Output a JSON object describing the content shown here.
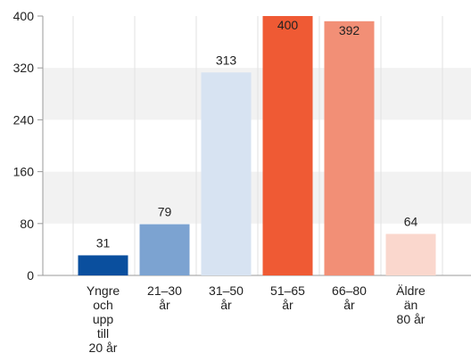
{
  "chart_data": {
    "type": "bar",
    "title": "",
    "xlabel": "",
    "ylabel": "",
    "ylim": [
      0,
      400
    ],
    "yticks": [
      "0",
      "80",
      "160",
      "240",
      "320",
      "400"
    ],
    "categories": [
      [
        "Yngre",
        "och",
        "upp",
        "till",
        "20 år"
      ],
      [
        "21–30",
        "år"
      ],
      [
        "31–50",
        "år"
      ],
      [
        "51–65",
        "år"
      ],
      [
        "66–80",
        "år"
      ],
      [
        "Äldre",
        "än",
        "80 år"
      ]
    ],
    "values": [
      31,
      79,
      313,
      400,
      392,
      64
    ],
    "value_labels": [
      "31",
      "79",
      "313",
      "400",
      "392",
      "64"
    ],
    "colors": [
      "#0a4f9e",
      "#7ca3d1",
      "#d7e3f2",
      "#ef5a34",
      "#f28f76",
      "#fad7cd"
    ],
    "band_color": "#f2f2f2",
    "grid": true,
    "legend": "none"
  }
}
